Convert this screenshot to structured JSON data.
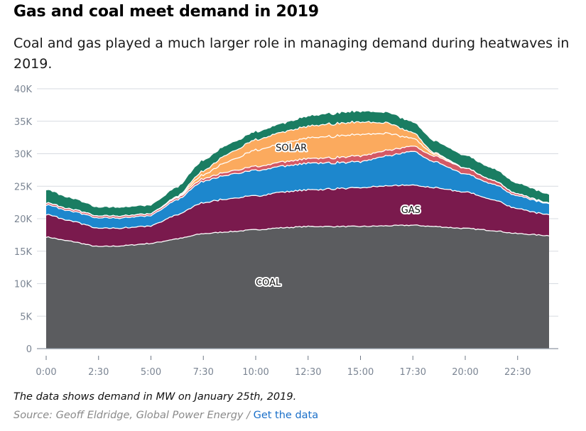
{
  "header": {
    "title": "Gas and coal meet demand in 2019",
    "subtitle": "Coal and gas played a much larger role in managing demand during heatwaves in 2019."
  },
  "footer": {
    "note": "The data shows demand in MW on January 25th, 2019.",
    "source_prefix": "Source: Geoff Eldridge, Global Power Energy / ",
    "link_label": "Get the data",
    "link_color": "#1a6fc9"
  },
  "chart_data": {
    "type": "area",
    "stacked": true,
    "title": "Gas and coal meet demand in 2019",
    "xlabel": "",
    "ylabel": "",
    "x_unit": "hour of day",
    "x": [
      0,
      1,
      2.5,
      3.5,
      5,
      6.25,
      7.5,
      8.75,
      10,
      11.25,
      12.5,
      13.75,
      15,
      16.25,
      17.5,
      18.5,
      20,
      21.25,
      22.5,
      24
    ],
    "xlim": [
      0,
      24
    ],
    "ylim": [
      0,
      40000
    ],
    "y_ticks": [
      0,
      5000,
      10000,
      15000,
      20000,
      25000,
      30000,
      35000,
      40000
    ],
    "y_tick_labels": [
      "0",
      "5K",
      "10K",
      "15K",
      "20K",
      "25K",
      "30K",
      "35K",
      "40K"
    ],
    "x_ticks": [
      0,
      2.5,
      5,
      7.5,
      10,
      12.5,
      15,
      17.5,
      20,
      22.5
    ],
    "x_tick_labels": [
      "0:00",
      "2:30",
      "5:00",
      "7:30",
      "10:00",
      "12:30",
      "15:00",
      "17:30",
      "20:00",
      "22:30"
    ],
    "grid": true,
    "legend": "inline labels",
    "series": [
      {
        "key": "coal",
        "label": "COAL",
        "color": "#5b5c5f",
        "values": [
          17200,
          16600,
          15700,
          15800,
          16200,
          16900,
          17700,
          18000,
          18300,
          18600,
          18800,
          18800,
          18800,
          18900,
          19000,
          18800,
          18500,
          18200,
          17700,
          17400
        ]
      },
      {
        "key": "gas",
        "label": "GAS",
        "color": "#7a1a4d",
        "values": [
          3500,
          3200,
          2800,
          2700,
          2700,
          3700,
          4800,
          5100,
          5200,
          5500,
          5600,
          5800,
          6000,
          6100,
          6200,
          6000,
          5600,
          4800,
          3800,
          3200
        ]
      },
      {
        "key": "blue",
        "label": "",
        "color": "#1d87cd",
        "values": [
          1500,
          1500,
          1600,
          1600,
          1600,
          2300,
          3300,
          3700,
          3900,
          4000,
          4100,
          4000,
          4000,
          4600,
          5200,
          4000,
          2800,
          2400,
          2000,
          1700
        ]
      },
      {
        "key": "red",
        "label": "",
        "color": "#d45a66",
        "values": [
          300,
          300,
          300,
          300,
          300,
          300,
          400,
          500,
          600,
          650,
          700,
          800,
          900,
          850,
          800,
          900,
          900,
          600,
          300,
          100
        ]
      },
      {
        "key": "solar_a",
        "label": "SOLAR",
        "color": "#fbaa5e",
        "values": [
          0,
          0,
          0,
          0,
          0,
          100,
          600,
          1600,
          2500,
          2900,
          3200,
          3300,
          3300,
          2600,
          1200,
          300,
          0,
          0,
          0,
          0
        ]
      },
      {
        "key": "solar_b",
        "label": "",
        "color": "#fbaa5e",
        "values": [
          0,
          0,
          0,
          0,
          0,
          100,
          600,
          1200,
          1600,
          1700,
          1800,
          1900,
          1900,
          1600,
          900,
          200,
          0,
          0,
          0,
          0
        ]
      },
      {
        "key": "green",
        "label": "",
        "color": "#1a7d62",
        "values": [
          2000,
          1700,
          1300,
          1300,
          1300,
          1400,
          1600,
          1400,
          1200,
          1300,
          1500,
          1600,
          1600,
          1600,
          1600,
          1800,
          1900,
          1800,
          1600,
          1300
        ]
      }
    ],
    "annotations": [
      {
        "text": "COAL",
        "series": "coal",
        "x": 14.5
      },
      {
        "text": "GAS",
        "series": "gas",
        "x": 17.9
      },
      {
        "text": "SOLAR",
        "series": "solar_a",
        "x": 13.7
      }
    ]
  }
}
